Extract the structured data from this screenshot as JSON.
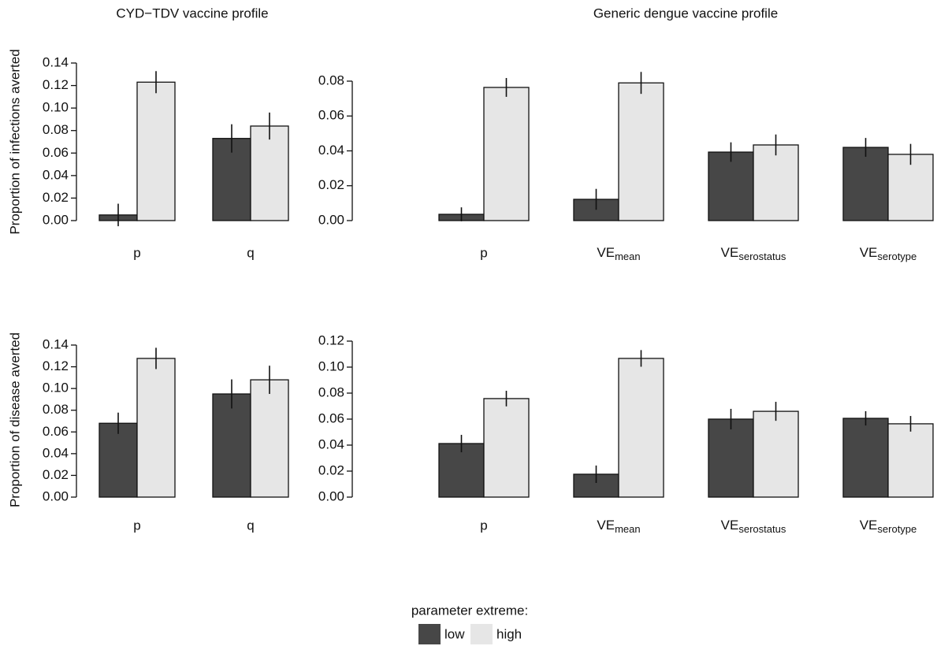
{
  "chart_data": [
    {
      "type": "bar",
      "title": "CYD−TDV vaccine profile",
      "ylabel": "Proportion of infections averted",
      "categories": [
        "p",
        "q"
      ],
      "series": [
        {
          "name": "low",
          "color": "#474747",
          "values": [
            0.005,
            0.073
          ],
          "errors": [
            0.01,
            0.0126
          ]
        },
        {
          "name": "high",
          "color": "#e6e6e6",
          "values": [
            0.123,
            0.084
          ],
          "errors": [
            0.0098,
            0.012
          ]
        }
      ],
      "ylim": [
        0,
        0.14
      ],
      "yticks": [
        {
          "value": 0,
          "label": "0.00"
        },
        0.02,
        0.04,
        0.06,
        0.08,
        {
          "value": 0.1,
          "label": "0.10"
        },
        0.12,
        0.14
      ]
    },
    {
      "type": "bar",
      "title": "Generic dengue vaccine profile",
      "categories": [
        "p",
        {
          "main": "VE",
          "sub": "mean"
        },
        {
          "main": "VE",
          "sub": "serostatus"
        },
        {
          "main": "VE",
          "sub": "serotype"
        }
      ],
      "series": [
        {
          "name": "low",
          "color": "#474747",
          "values": [
            0.0036,
            0.0122,
            0.0393,
            0.042
          ],
          "errors": [
            0.004,
            0.006,
            0.0056,
            0.0054
          ]
        },
        {
          "name": "high",
          "color": "#e6e6e6",
          "values": [
            0.0764,
            0.079,
            0.0434,
            0.038
          ],
          "errors": [
            0.0054,
            0.0063,
            0.006,
            0.006
          ]
        }
      ],
      "ylim": [
        0,
        0.08
      ],
      "yticks": [
        {
          "value": 0,
          "label": "0.00"
        },
        0.02,
        0.04,
        0.06,
        0.08
      ]
    },
    {
      "type": "bar",
      "ylabel": "Proportion of disease averted",
      "categories": [
        "p",
        "q"
      ],
      "series": [
        {
          "name": "low",
          "color": "#474747",
          "values": [
            0.068,
            0.095
          ],
          "errors": [
            0.0098,
            0.0134
          ]
        },
        {
          "name": "high",
          "color": "#e6e6e6",
          "values": [
            0.1277,
            0.108
          ],
          "errors": [
            0.0098,
            0.013
          ]
        }
      ],
      "ylim": [
        0,
        0.14
      ],
      "yticks": [
        {
          "value": 0,
          "label": "0.00"
        },
        0.02,
        0.04,
        0.06,
        0.08,
        {
          "value": 0.1,
          "label": "0.10"
        },
        0.12,
        0.14
      ]
    },
    {
      "type": "bar",
      "categories": [
        "p",
        {
          "main": "VE",
          "sub": "mean"
        },
        {
          "main": "VE",
          "sub": "serostatus"
        },
        {
          "main": "VE",
          "sub": "serotype"
        }
      ],
      "series": [
        {
          "name": "low",
          "color": "#474747",
          "values": [
            0.0412,
            0.0176,
            0.06,
            0.0606
          ],
          "errors": [
            0.0067,
            0.0067,
            0.0079,
            0.0055
          ]
        },
        {
          "name": "high",
          "color": "#e6e6e6",
          "values": [
            0.0758,
            0.1067,
            0.066,
            0.0564
          ],
          "errors": [
            0.006,
            0.0064,
            0.0073,
            0.006
          ]
        }
      ],
      "ylim": [
        0,
        0.12
      ],
      "yticks": [
        {
          "value": 0,
          "label": "0.00"
        },
        0.02,
        0.04,
        0.06,
        0.08,
        {
          "value": 0.1,
          "label": "0.10"
        },
        0.12
      ]
    }
  ],
  "legend_title": "parameter extreme:"
}
